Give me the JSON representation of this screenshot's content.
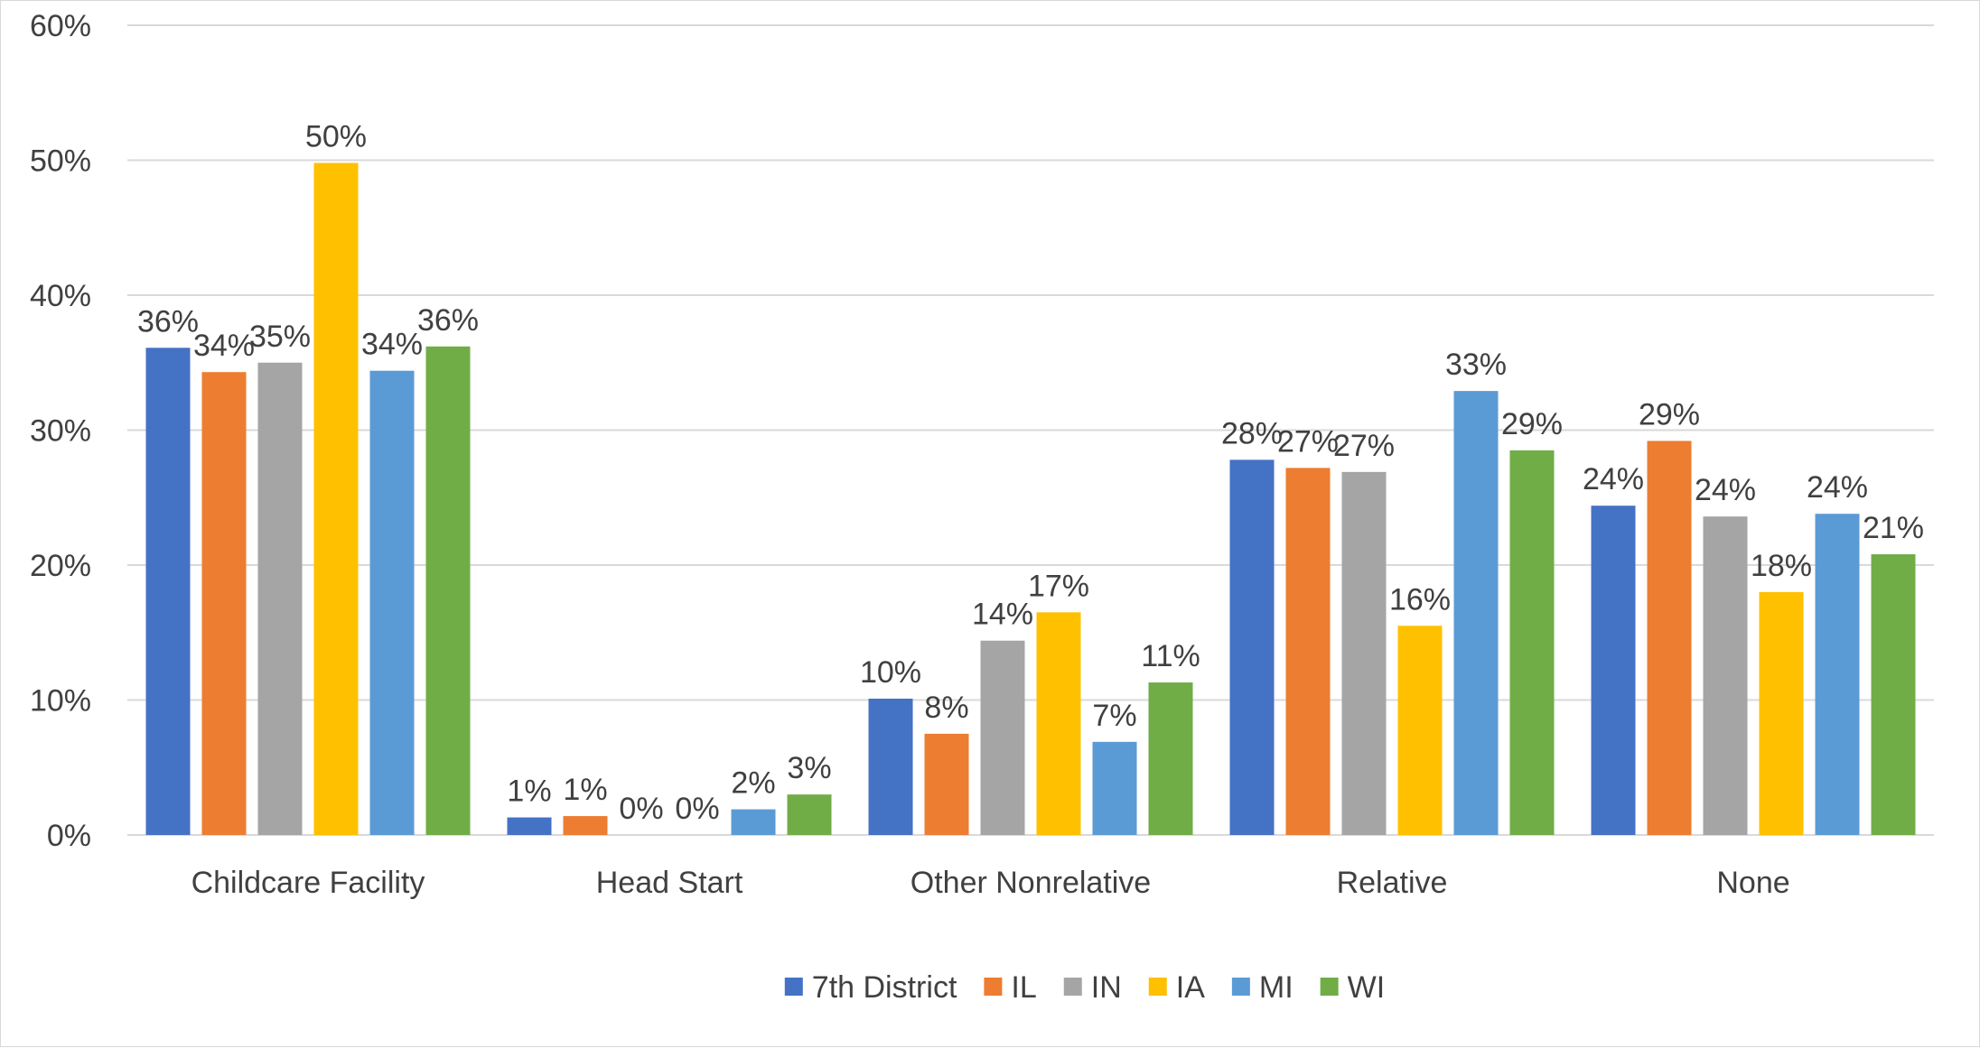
{
  "chart_data": {
    "type": "bar",
    "categories": [
      "Childcare Facility",
      "Head Start",
      "Other Nonrelative",
      "Relative",
      "None"
    ],
    "series": [
      {
        "name": "7th District",
        "color": "#4472C4",
        "values": [
          36.1,
          1.3,
          10.1,
          27.8,
          24.4
        ],
        "labels": [
          "36%",
          "1%",
          "10%",
          "28%",
          "24%"
        ]
      },
      {
        "name": "IL",
        "color": "#ED7D31",
        "values": [
          34.3,
          1.4,
          7.5,
          27.2,
          29.2
        ],
        "labels": [
          "34%",
          "1%",
          "8%",
          "27%",
          "29%"
        ]
      },
      {
        "name": "IN",
        "color": "#A5A5A5",
        "values": [
          35.0,
          0.0,
          14.4,
          26.9,
          23.6
        ],
        "labels": [
          "35%",
          "0%",
          "14%",
          "27%",
          "24%"
        ]
      },
      {
        "name": "IA",
        "color": "#FFC000",
        "values": [
          49.8,
          0.0,
          16.5,
          15.5,
          18.0
        ],
        "labels": [
          "50%",
          "0%",
          "17%",
          "16%",
          "18%"
        ]
      },
      {
        "name": "MI",
        "color": "#5B9BD5",
        "values": [
          34.4,
          1.9,
          6.9,
          32.9,
          23.8
        ],
        "labels": [
          "34%",
          "2%",
          "7%",
          "33%",
          "24%"
        ]
      },
      {
        "name": "WI",
        "color": "#70AD47",
        "values": [
          36.2,
          3.0,
          11.3,
          28.5,
          20.8
        ],
        "labels": [
          "36%",
          "3%",
          "11%",
          "29%",
          "21%"
        ]
      }
    ],
    "ylim": [
      0,
      60
    ],
    "yticks": [
      0,
      10,
      20,
      30,
      40,
      50,
      60
    ],
    "ytick_labels": [
      "0%",
      "10%",
      "20%",
      "30%",
      "40%",
      "50%",
      "60%"
    ],
    "grid": true,
    "legend": "bottom-center"
  }
}
